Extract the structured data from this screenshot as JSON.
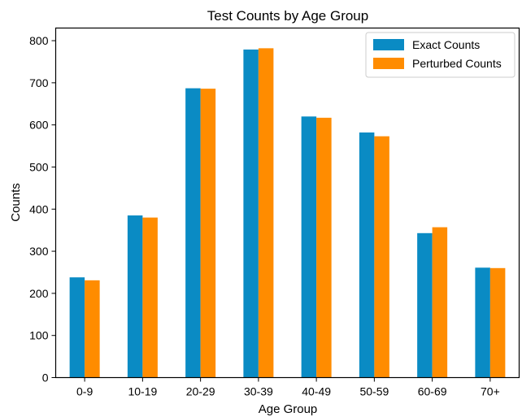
{
  "chart_data": {
    "type": "bar",
    "title": "Test Counts by Age Group",
    "xlabel": "Age Group",
    "ylabel": "Counts",
    "categories": [
      "0-9",
      "10-19",
      "20-29",
      "30-39",
      "40-49",
      "50-59",
      "60-69",
      "70+"
    ],
    "series": [
      {
        "name": "Exact Counts",
        "color": "#0a8bc4",
        "values": [
          238,
          385,
          687,
          779,
          620,
          582,
          343,
          261
        ]
      },
      {
        "name": "Perturbed Counts",
        "color": "#ff8c00",
        "values": [
          231,
          380,
          686,
          782,
          617,
          573,
          357,
          260
        ]
      }
    ],
    "ylim": [
      0,
      830
    ],
    "yticks": [
      0,
      100,
      200,
      300,
      400,
      500,
      600,
      700,
      800
    ],
    "grid": false,
    "legend_position": "top-right"
  }
}
